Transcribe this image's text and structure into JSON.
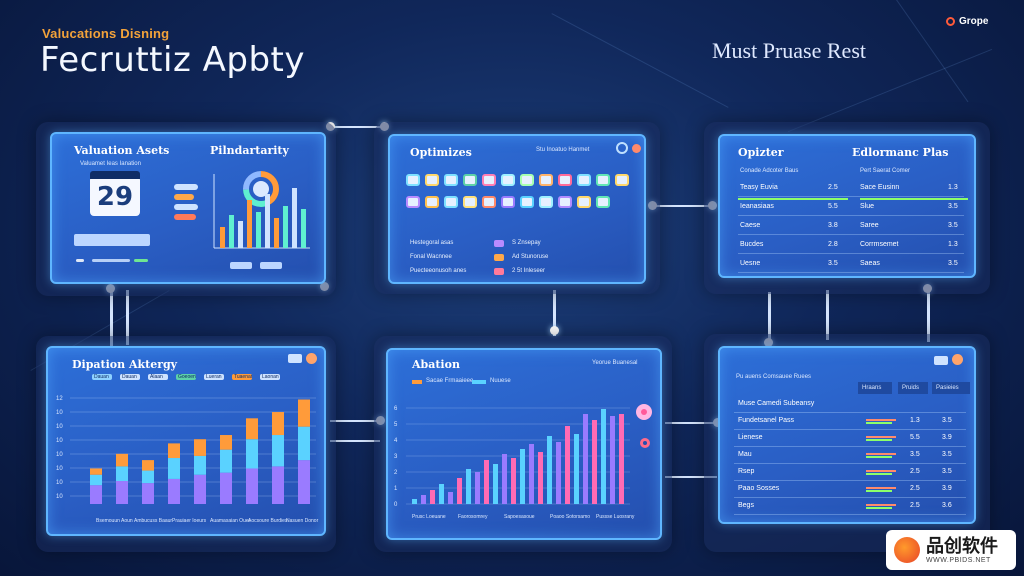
{
  "header": {
    "subtitle": "Valucations Disning",
    "title": "Fecruttiz Apbty",
    "right_title": "Must Pruase Rest",
    "logo_text": "Grope"
  },
  "panel_valuation": {
    "title": "Valuation Asets",
    "title_right": "Pilndartarity",
    "caption": "Valuamet Ieas Ianation",
    "calendar_day": "29",
    "ring_value": "",
    "bar_heights": [
      0.35,
      0.55,
      0.45,
      0.8,
      0.6,
      0.9,
      0.5,
      0.7,
      1.0,
      0.65
    ],
    "footer_labels": [
      "Deaim",
      "Onraan"
    ]
  },
  "panel_optimizes": {
    "title": "Optimizes",
    "header_meta": "Stu Inoatuo Hanmet",
    "icon_colors": [
      "#7ee0ff",
      "#ffd86b",
      "#7ee0ff",
      "#5dd1a8",
      "#ff7fb3",
      "#9ef0ff",
      "#a7ffb0",
      "#ffb36b",
      "#ff6b9a",
      "#7ee0ff",
      "#62e6b5",
      "#ffd86b",
      "#b88bff",
      "#ffc04d",
      "#7ee0ff",
      "#ffe07a",
      "#ff8a6b",
      "#9a7bff",
      "#5ad2ff",
      "#9ef0ff",
      "#b28bff",
      "#ffd86b",
      "#62e6b5"
    ],
    "rows": [
      {
        "label": "Hestegoral asas",
        "value": "S Znsepay"
      },
      {
        "label": "Fonal Wacnnee",
        "value": "Ad Stunoruse"
      },
      {
        "label": "Puecteeonusoh anes",
        "value": "2 5t Inleseer"
      }
    ]
  },
  "panel_opizter": {
    "title": "Opizter",
    "title_right": "Edlormanc Plas",
    "header_left": "Conade Adcoter Baus",
    "header_right": "Pert Saerat Comer",
    "rows": [
      {
        "a": "Teasy Euvia",
        "b": "2.5",
        "c": "Sace Eusinn",
        "d": "1.3"
      },
      {
        "a": "Ieanasiaas",
        "b": "5.5",
        "c": "Slue",
        "d": "3.5"
      },
      {
        "a": "Caese",
        "b": "3.8",
        "c": "Saree",
        "d": "3.5"
      },
      {
        "a": "Bucdes",
        "b": "2.8",
        "c": "Corrmsemet",
        "d": "1.3"
      },
      {
        "a": "Uesne",
        "b": "3.5",
        "c": "Saeas",
        "d": "3.5"
      }
    ]
  },
  "panel_dipation": {
    "title": "Dipation Aktergy",
    "legend": [
      "Dauan",
      "Dauan",
      "Alaan",
      "Goeoen",
      "Lueran",
      "Tuaenan",
      "Laonan"
    ],
    "x_labels": [
      "Bsemouun Aoun",
      "Ambucuss Baaur",
      "Prauiaer Ioeurs",
      "Auamasaian Ouer",
      "Aocsoure Burdies",
      "Nasuen Donor"
    ],
    "y_labels": [
      "12",
      "10",
      "10",
      "10",
      "10",
      "10",
      "10",
      "10"
    ],
    "bars": [
      [
        0.18,
        0.1,
        0.06
      ],
      [
        0.22,
        0.14,
        0.12
      ],
      [
        0.2,
        0.12,
        0.1
      ],
      [
        0.24,
        0.2,
        0.14
      ],
      [
        0.28,
        0.18,
        0.16
      ],
      [
        0.3,
        0.22,
        0.14
      ],
      [
        0.34,
        0.28,
        0.2
      ],
      [
        0.36,
        0.3,
        0.22
      ],
      [
        0.42,
        0.32,
        0.26
      ]
    ]
  },
  "panel_abation": {
    "title": "Abation",
    "header_meta": "Yeorue Buanesal",
    "legend": [
      "Sacae Frmaaieee",
      "Nuuese"
    ],
    "y_labels": [
      "6",
      "5",
      "4",
      "3",
      "2",
      "1",
      "0"
    ],
    "x_labels": [
      "Prusc Loeuane",
      "Faorosomrey",
      "Sapoesasoue",
      "Poaoo Sotorsamo",
      "Pussse Luosrany"
    ],
    "bar_values": [
      0.05,
      0.09,
      0.14,
      0.2,
      0.12,
      0.26,
      0.35,
      0.32,
      0.44,
      0.4,
      0.5,
      0.46,
      0.55,
      0.6,
      0.52,
      0.68,
      0.62,
      0.78,
      0.7,
      0.9,
      0.84,
      0.95,
      0.88,
      0.9
    ]
  },
  "panel_right_bottom": {
    "header_meta": "Pu auens Comsauee Ruees",
    "col_headers": [
      "Hraans",
      "Pruids",
      "Pasieies"
    ],
    "rows": [
      {
        "label": "Muse Camedi Subeansy",
        "v1": "",
        "v2": ""
      },
      {
        "label": "Fundetsanel Pass",
        "v1": "1.3",
        "v2": "3.5"
      },
      {
        "label": "Lienese",
        "v1": "5.5",
        "v2": "3.9"
      },
      {
        "label": "Mau",
        "v1": "3.5",
        "v2": "3.5"
      },
      {
        "label": "Rsep",
        "v1": "2.5",
        "v2": "3.5"
      },
      {
        "label": "Paao Sosses",
        "v1": "2.5",
        "v2": "3.9"
      },
      {
        "label": "Begs",
        "v1": "2.5",
        "v2": "3.6"
      }
    ]
  },
  "watermark": {
    "name": "品创软件",
    "url": "WWW.PBIDS.NET"
  }
}
